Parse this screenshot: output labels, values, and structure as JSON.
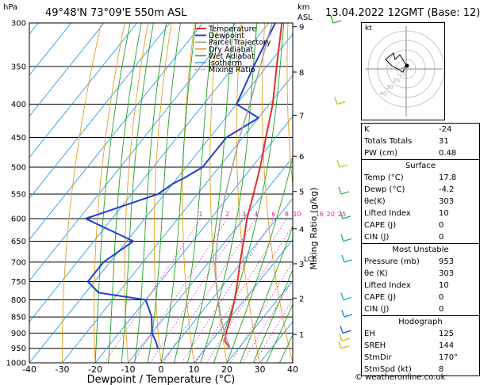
{
  "header": {
    "location": "49°48'N  73°09'E  550m  ASL",
    "datetime": "13.04.2022  12GMT  (Base: 12)",
    "hpa_label": "hPa",
    "km_label": "km",
    "asl_label": "ASL"
  },
  "colors": {
    "temperature": "#e03030",
    "dewpoint": "#2040d0",
    "parcel": "#a0a0a0",
    "dry_adiabat": "#e0a020",
    "wet_adiabat": "#20a020",
    "isotherm": "#30a0e0",
    "mixing_ratio": "#e020a0"
  },
  "chart_data": {
    "type": "line",
    "xlabel": "Dewpoint / Temperature (°C)",
    "ylabel": "Mixing Ratio (g/kg)",
    "xlim": [
      -40,
      40
    ],
    "ylim": [
      1000,
      300
    ],
    "x_ticks": [
      "-40",
      "-30",
      "-20",
      "-10",
      "0",
      "10",
      "20",
      "30",
      "40"
    ],
    "pressure_levels": [
      "300",
      "350",
      "400",
      "450",
      "500",
      "550",
      "600",
      "650",
      "700",
      "750",
      "800",
      "850",
      "900",
      "950",
      "1000"
    ],
    "km_ticks": [
      {
        "label": "9",
        "p": 304
      },
      {
        "label": "8",
        "p": 357
      },
      {
        "label": "7",
        "p": 416
      },
      {
        "label": "6",
        "p": 481
      },
      {
        "label": "5",
        "p": 545
      },
      {
        "label": "4",
        "p": 622
      },
      {
        "label": "3",
        "p": 704
      },
      {
        "label": "2",
        "p": 795
      },
      {
        "label": "1",
        "p": 904
      }
    ],
    "lcl_label": "LCL",
    "mixing_ratio_labels": [
      "1",
      "2",
      "3",
      "4",
      "6",
      "8",
      "10",
      "16",
      "20",
      "25"
    ],
    "legend": [
      "Temperature",
      "Dewpoint",
      "Parcel Trajectory",
      "Dry Adiabat",
      "Wet Adiabat",
      "Isotherm",
      "Mixing Ratio"
    ],
    "series": [
      {
        "name": "Temperature",
        "p": [
          953,
          925,
          900,
          850,
          800,
          750,
          700,
          650,
          600,
          550,
          500,
          450,
          400,
          350,
          300
        ],
        "t": [
          17.8,
          14,
          12.5,
          10,
          7,
          3.5,
          -0.5,
          -4.5,
          -9,
          -13,
          -17.5,
          -23,
          -29,
          -37,
          -46
        ]
      },
      {
        "name": "Dewpoint",
        "p": [
          953,
          925,
          900,
          850,
          800,
          780,
          750,
          700,
          650,
          600,
          550,
          530,
          520,
          500,
          450,
          420,
          400,
          350,
          300
        ],
        "t": [
          -4.2,
          -7,
          -10,
          -14,
          -20,
          -36,
          -42,
          -42,
          -38,
          -58,
          -42,
          -40,
          -38,
          -35,
          -35,
          -30,
          -40,
          -44,
          -48
        ]
      },
      {
        "name": "Parcel Trajectory",
        "p": [
          953,
          900,
          850,
          800,
          750,
          700,
          650,
          600,
          550,
          500,
          450,
          400,
          350,
          300
        ],
        "t": [
          17.8,
          12,
          7,
          2,
          -3,
          -8,
          -12.5,
          -17,
          -21.5,
          -26,
          -31,
          -36,
          -42,
          -49
        ]
      }
    ]
  },
  "hodograph": {
    "label": "kt",
    "ring_labels": [
      "10",
      "20",
      "30",
      "40"
    ]
  },
  "indices": [
    {
      "k": "K",
      "v": "-24"
    },
    {
      "k": "Totals Totals",
      "v": "31"
    },
    {
      "k": "PW (cm)",
      "v": "0.48"
    }
  ],
  "surface": {
    "title": "Surface",
    "rows": [
      {
        "k": "Temp (°C)",
        "v": "17.8"
      },
      {
        "k": "Dewp (°C)",
        "v": "-4.2"
      },
      {
        "k": "θe(K)",
        "v": "303"
      },
      {
        "k": "Lifted Index",
        "v": "10"
      },
      {
        "k": "CAPE (J)",
        "v": "0"
      },
      {
        "k": "CIN (J)",
        "v": "0"
      }
    ]
  },
  "most_unstable": {
    "title": "Most Unstable",
    "rows": [
      {
        "k": "Pressure (mb)",
        "v": "953"
      },
      {
        "k": "θe (K)",
        "v": "303"
      },
      {
        "k": "Lifted Index",
        "v": "10"
      },
      {
        "k": "CAPE (J)",
        "v": "0"
      },
      {
        "k": "CIN (J)",
        "v": "0"
      }
    ]
  },
  "hodograph_table": {
    "title": "Hodograph",
    "rows": [
      {
        "k": "EH",
        "v": "125"
      },
      {
        "k": "SREH",
        "v": "144"
      },
      {
        "k": "StmDir",
        "v": "170°"
      },
      {
        "k": "StmSpd (kt)",
        "v": "8"
      }
    ]
  },
  "footer": "© weatheronline.co.uk"
}
